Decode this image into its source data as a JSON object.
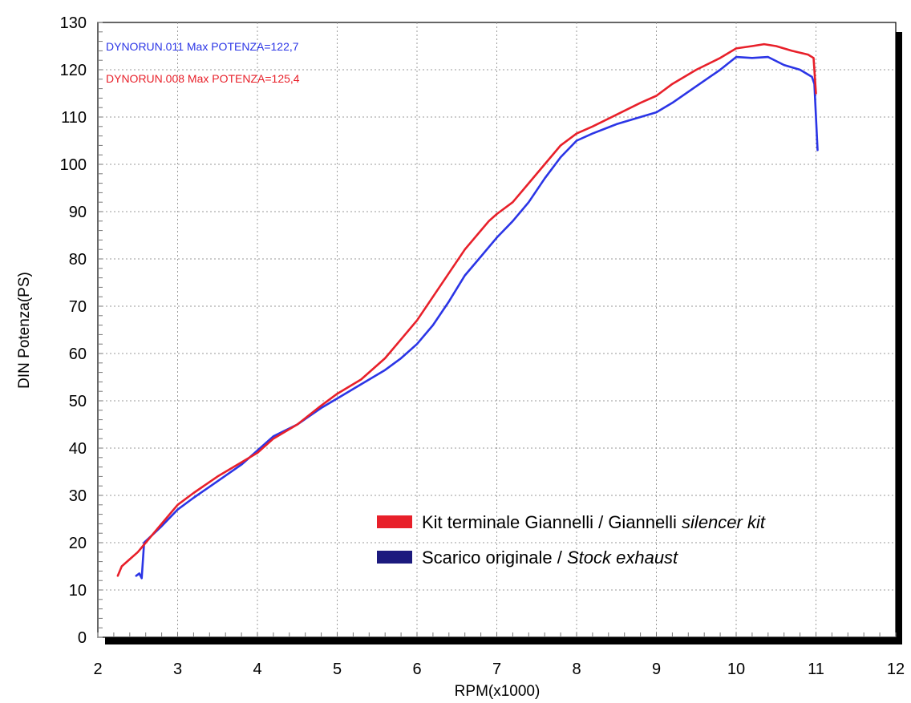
{
  "chart_data": {
    "type": "line",
    "xlabel": "RPM(x1000)",
    "ylabel": "DIN Potenza(PS)",
    "xlim": [
      2,
      12
    ],
    "ylim": [
      0,
      130
    ],
    "x_ticks": [
      "2",
      "3",
      "4",
      "5",
      "6",
      "7",
      "8",
      "9",
      "10",
      "11",
      "12"
    ],
    "y_ticks": [
      "0",
      "10",
      "20",
      "30",
      "40",
      "50",
      "60",
      "70",
      "80",
      "90",
      "100",
      "110",
      "120",
      "130"
    ],
    "grid": true,
    "legend_position": "bottom-right",
    "annotations": [
      {
        "text": "DYNORUN.011  Max POTENZA=122,7",
        "color": "#2b35e6"
      },
      {
        "text": "DYNORUN.008  Max POTENZA=125,4",
        "color": "#e8202a"
      }
    ],
    "legend": [
      {
        "plain": "Kit terminale Giannelli / Giannelli ",
        "italic": "silencer kit",
        "color": "#e8202a"
      },
      {
        "plain": "Scarico originale / ",
        "italic": "Stock exhaust",
        "color": "#1c1a7e"
      }
    ],
    "series": [
      {
        "name": "Kit terminale Giannelli / Giannelli silencer kit",
        "color": "#e8202a",
        "points": [
          [
            2.25,
            13
          ],
          [
            2.3,
            15
          ],
          [
            2.4,
            16.5
          ],
          [
            2.5,
            18
          ],
          [
            2.6,
            20
          ],
          [
            2.8,
            24
          ],
          [
            3.0,
            28
          ],
          [
            3.2,
            30.5
          ],
          [
            3.5,
            34
          ],
          [
            3.8,
            37
          ],
          [
            4.0,
            39
          ],
          [
            4.2,
            42
          ],
          [
            4.5,
            45
          ],
          [
            4.8,
            49
          ],
          [
            5.0,
            51.5
          ],
          [
            5.3,
            54.5
          ],
          [
            5.6,
            59
          ],
          [
            5.8,
            63
          ],
          [
            6.0,
            67
          ],
          [
            6.2,
            72
          ],
          [
            6.4,
            77
          ],
          [
            6.6,
            82
          ],
          [
            6.8,
            86
          ],
          [
            6.9,
            88
          ],
          [
            7.0,
            89.5
          ],
          [
            7.2,
            92
          ],
          [
            7.4,
            96
          ],
          [
            7.6,
            100
          ],
          [
            7.8,
            104
          ],
          [
            8.0,
            106.5
          ],
          [
            8.2,
            108
          ],
          [
            8.5,
            110.5
          ],
          [
            8.8,
            113
          ],
          [
            9.0,
            114.5
          ],
          [
            9.2,
            117
          ],
          [
            9.5,
            120
          ],
          [
            9.8,
            122.5
          ],
          [
            10.0,
            124.5
          ],
          [
            10.2,
            125
          ],
          [
            10.35,
            125.4
          ],
          [
            10.5,
            125
          ],
          [
            10.7,
            124
          ],
          [
            10.9,
            123.2
          ],
          [
            10.97,
            122.5
          ],
          [
            10.98,
            120
          ],
          [
            11.0,
            115
          ]
        ]
      },
      {
        "name": "Scarico originale / Stock exhaust",
        "color": "#2b35e6",
        "points": [
          [
            2.48,
            13
          ],
          [
            2.52,
            13.5
          ],
          [
            2.55,
            12.5
          ],
          [
            2.58,
            20
          ],
          [
            2.8,
            23.5
          ],
          [
            3.0,
            27
          ],
          [
            3.2,
            29.5
          ],
          [
            3.5,
            33
          ],
          [
            3.8,
            36.5
          ],
          [
            4.0,
            39.5
          ],
          [
            4.2,
            42.5
          ],
          [
            4.5,
            45
          ],
          [
            4.8,
            48.5
          ],
          [
            5.0,
            50.5
          ],
          [
            5.3,
            53.5
          ],
          [
            5.6,
            56.5
          ],
          [
            5.8,
            59
          ],
          [
            6.0,
            62
          ],
          [
            6.2,
            66
          ],
          [
            6.4,
            71
          ],
          [
            6.6,
            76.5
          ],
          [
            6.8,
            80.5
          ],
          [
            7.0,
            84.5
          ],
          [
            7.2,
            88
          ],
          [
            7.4,
            92
          ],
          [
            7.6,
            97
          ],
          [
            7.8,
            101.5
          ],
          [
            8.0,
            105
          ],
          [
            8.2,
            106.5
          ],
          [
            8.5,
            108.5
          ],
          [
            8.8,
            110
          ],
          [
            9.0,
            111
          ],
          [
            9.2,
            113
          ],
          [
            9.5,
            116.5
          ],
          [
            9.8,
            120
          ],
          [
            10.0,
            122.7
          ],
          [
            10.2,
            122.5
          ],
          [
            10.4,
            122.7
          ],
          [
            10.6,
            121
          ],
          [
            10.8,
            120
          ],
          [
            10.95,
            118.5
          ],
          [
            10.98,
            117
          ],
          [
            11.0,
            110
          ],
          [
            11.02,
            103
          ]
        ]
      }
    ]
  }
}
